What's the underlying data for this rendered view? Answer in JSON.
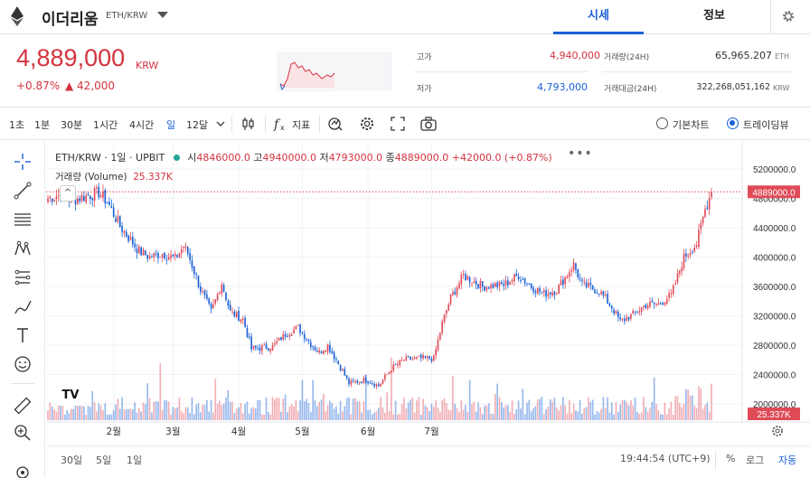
{
  "header": {
    "coin_name": "이더리움",
    "pair": "ETH/KRW",
    "tabs": [
      "시세",
      "정보"
    ]
  },
  "price": {
    "current": "4,889,000",
    "unit": "KRW",
    "change_pct": "+0.87%",
    "change_abs": "▲ 42,000",
    "high_label": "고가",
    "high": "4,940,000",
    "low_label": "저가",
    "low": "4,793,000",
    "volume_label": "거래량(24H)",
    "volume": "65,965.207",
    "volume_unit": "ETH",
    "value_label": "거래대금(24H)",
    "value": "322,268,051,162",
    "value_unit": "KRW"
  },
  "toolbar": {
    "intervals": [
      "1초",
      "1분",
      "30분",
      "1시간",
      "4시간",
      "일",
      "12달"
    ],
    "active_interval": "일",
    "indicator_label": "지표",
    "chart_modes": [
      "기본차트",
      "트레이딩뷰"
    ],
    "selected_mode": "트레이딩뷰"
  },
  "legend": {
    "symbol": "ETH/KRW · 1일 · UPBIT",
    "o_label": "시",
    "o": "4846000.0",
    "h_label": "고",
    "h": "4940000.0",
    "l_label": "저",
    "l": "4793000.0",
    "c_label": "종",
    "c": "4889000.0",
    "change": "+42000.0 (+0.87%)",
    "volume_label": "거래량 (Volume)",
    "volume_value": "25.337K"
  },
  "chart_data": {
    "type": "candlestick",
    "y_ticks": [
      5200000,
      4800000,
      4400000,
      4000000,
      3600000,
      3200000,
      2800000,
      2400000,
      2000000
    ],
    "y_tick_labels": [
      "5200000.0",
      "4800000.0",
      "4400000.0",
      "4000000.0",
      "3600000.0",
      "3200000.0",
      "2800000.0",
      "2400000.0",
      "2000000.0"
    ],
    "ylim": [
      1850000,
      5350000
    ],
    "x_ticks": [
      "2월",
      "3월",
      "4월",
      "5월",
      "6월",
      "7월"
    ],
    "last_price_label": "4889000.0",
    "last_price": 4889000,
    "last_volume_label": "25.337K",
    "anchors": [
      [
        0,
        4800000
      ],
      [
        6,
        4850000
      ],
      [
        12,
        4780000
      ],
      [
        18,
        4830000
      ],
      [
        24,
        4880000
      ],
      [
        28,
        4750000
      ],
      [
        34,
        4420000
      ],
      [
        38,
        4270000
      ],
      [
        43,
        4080000
      ],
      [
        48,
        4000000
      ],
      [
        54,
        4050000
      ],
      [
        60,
        3980000
      ],
      [
        64,
        4150000
      ],
      [
        66,
        4050000
      ],
      [
        72,
        3560000
      ],
      [
        77,
        3250000
      ],
      [
        82,
        3650000
      ],
      [
        86,
        3250000
      ],
      [
        92,
        3150000
      ],
      [
        96,
        2750000
      ],
      [
        106,
        2780000
      ],
      [
        112,
        2950000
      ],
      [
        118,
        3040000
      ],
      [
        124,
        2820000
      ],
      [
        128,
        2700000
      ],
      [
        132,
        2800000
      ],
      [
        138,
        2500000
      ],
      [
        142,
        2280000
      ],
      [
        150,
        2330000
      ],
      [
        156,
        2250000
      ],
      [
        162,
        2480000
      ],
      [
        168,
        2600000
      ],
      [
        175,
        2620000
      ],
      [
        182,
        2620000
      ],
      [
        186,
        3100000
      ],
      [
        190,
        3450000
      ],
      [
        196,
        3750000
      ],
      [
        205,
        3600000
      ],
      [
        215,
        3620000
      ],
      [
        222,
        3750000
      ],
      [
        228,
        3600000
      ],
      [
        234,
        3500000
      ],
      [
        240,
        3550000
      ],
      [
        248,
        3900000
      ],
      [
        252,
        3620000
      ],
      [
        260,
        3540000
      ],
      [
        266,
        3320000
      ],
      [
        270,
        3120000
      ],
      [
        276,
        3220000
      ],
      [
        282,
        3350000
      ],
      [
        288,
        3360000
      ],
      [
        294,
        3480000
      ],
      [
        300,
        4000000
      ],
      [
        306,
        4180000
      ],
      [
        310,
        4650000
      ],
      [
        313,
        4889000
      ]
    ],
    "candle_count": 314,
    "month_index": {
      "2월": 31,
      "3월": 59,
      "4월": 90,
      "5월": 120,
      "6월": 151,
      "7월": 181
    }
  },
  "bottom": {
    "ranges": [
      "30일",
      "5일",
      "1일"
    ],
    "clock": "19:44:54 (UTC+9)",
    "pct": "%",
    "log": "로그",
    "auto": "자동"
  }
}
